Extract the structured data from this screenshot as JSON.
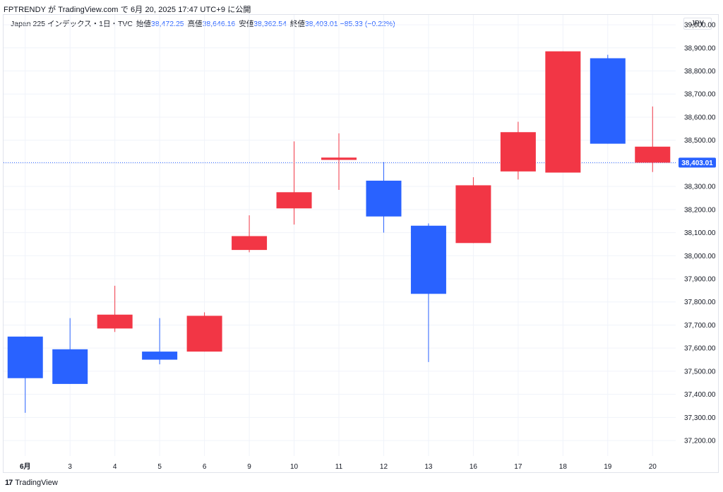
{
  "header": {
    "published": "FPTRENDY が TradingView.com で 6月 20, 2025 17:47 UTC+9 に公開"
  },
  "legend": {
    "symbol": "Japan 225 インデックス・1日・TVC",
    "open_label": "始値",
    "open": "38,472.25",
    "high_label": "高値",
    "high": "38,646.16",
    "low_label": "安値",
    "low": "38,362.54",
    "close_label": "終値",
    "close": "38,403.01",
    "change": "−85.33 (−0.22%)"
  },
  "currency_button": "JPY",
  "footer": {
    "logo": "17",
    "brand": "TradingView"
  },
  "colors": {
    "up": "#2962ff",
    "down": "#f23645",
    "grid": "#f0f3fa",
    "axis_text": "#131722",
    "price_line": "#2962ff"
  },
  "chart_data": {
    "type": "candlestick",
    "title": "",
    "xlabel": "",
    "ylabel": "",
    "ylim": [
      37133,
      39043
    ],
    "y_ticks": [
      37200,
      37300,
      37400,
      37500,
      37600,
      37700,
      37800,
      37900,
      38000,
      38100,
      38200,
      38300,
      38400,
      38500,
      38600,
      38700,
      38800,
      38900,
      39000
    ],
    "y_tick_labels": [
      "37,200.00",
      "37,300.00",
      "37,400.00",
      "37,500.00",
      "37,600.00",
      "37,700.00",
      "37,800.00",
      "37,900.00",
      "38,000.00",
      "38,100.00",
      "38,200.00",
      "38,300.00",
      "38,400.00",
      "38,500.00",
      "38,600.00",
      "38,700.00",
      "38,800.00",
      "38,900.00",
      "39,000.00"
    ],
    "last_price": 38403.01,
    "last_price_label": "38,403.01",
    "categories": [
      "6月",
      "3",
      "4",
      "5",
      "6",
      "9",
      "10",
      "11",
      "12",
      "13",
      "16",
      "17",
      "18",
      "19",
      "20"
    ],
    "candles": [
      {
        "date": "6月",
        "open": 37470,
        "high": 37650,
        "low": 37320,
        "close": 37650
      },
      {
        "date": "3",
        "open": 37445,
        "high": 37730,
        "low": 37445,
        "close": 37595
      },
      {
        "date": "4",
        "open": 37745,
        "high": 37870,
        "low": 37670,
        "close": 37685
      },
      {
        "date": "5",
        "open": 37550,
        "high": 37730,
        "low": 37530,
        "close": 37585
      },
      {
        "date": "6",
        "open": 37740,
        "high": 37755,
        "low": 37585,
        "close": 37585
      },
      {
        "date": "9",
        "open": 38085,
        "high": 38175,
        "low": 38015,
        "close": 38025
      },
      {
        "date": "10",
        "open": 38275,
        "high": 38495,
        "low": 38135,
        "close": 38205
      },
      {
        "date": "11",
        "open": 38425,
        "high": 38530,
        "low": 38285,
        "close": 38415
      },
      {
        "date": "12",
        "open": 38170,
        "high": 38405,
        "low": 38100,
        "close": 38325
      },
      {
        "date": "13",
        "open": 37835,
        "high": 38140,
        "low": 37540,
        "close": 38130
      },
      {
        "date": "16",
        "open": 38305,
        "high": 38340,
        "low": 38055,
        "close": 38055
      },
      {
        "date": "17",
        "open": 38535,
        "high": 38580,
        "low": 38330,
        "close": 38365
      },
      {
        "date": "18",
        "open": 38885,
        "high": 38885,
        "low": 38360,
        "close": 38360
      },
      {
        "date": "19",
        "open": 38485,
        "high": 38870,
        "low": 38485,
        "close": 38855
      },
      {
        "date": "20",
        "open": 38472.25,
        "high": 38646.16,
        "low": 38362.54,
        "close": 38403.01
      }
    ]
  }
}
